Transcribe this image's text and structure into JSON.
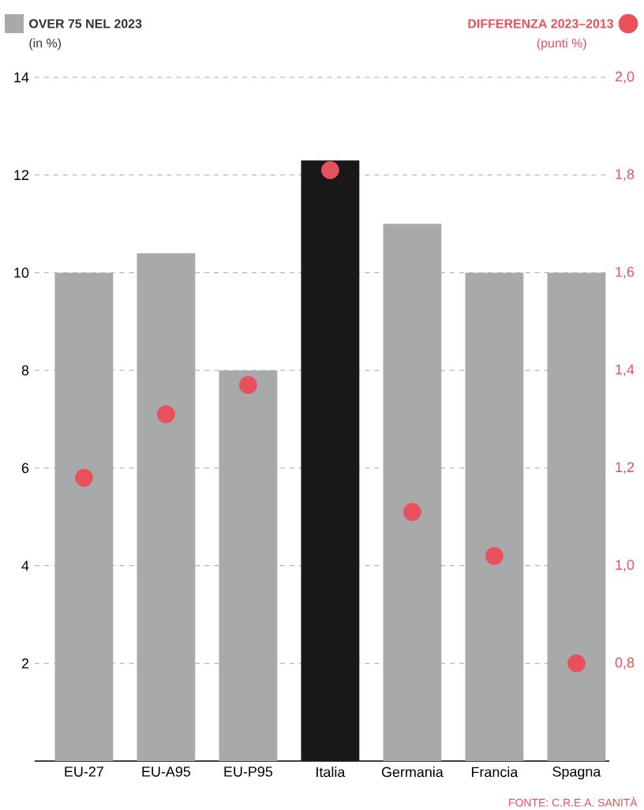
{
  "chart_data": {
    "type": "bar",
    "categories": [
      "EU-27",
      "EU-A95",
      "EU-P95",
      "Italia",
      "Germania",
      "Francia",
      "Spagna"
    ],
    "series": [
      {
        "name": "OVER 75 NEL 2023",
        "color": "#a7a9ab",
        "colors": [
          "#a7a9ab",
          "#a7a9ab",
          "#a7a9ab",
          "#1a1718",
          "#a7a9ab",
          "#a7a9ab",
          "#a7a9ab"
        ],
        "values": [
          10.0,
          10.4,
          8.0,
          12.3,
          11.0,
          10.0,
          10.0
        ]
      },
      {
        "name": "DIFFERENZA 2023–2013",
        "type": "scatter",
        "axis": "y2",
        "color": "#e8505b",
        "marker": "circle",
        "values": [
          1.18,
          1.31,
          1.37,
          1.81,
          1.11,
          1.02,
          0.8
        ]
      }
    ],
    "ylabel": "(in %)",
    "y2label": "(punti %)",
    "ylim": [
      0,
      14
    ],
    "yticks": [
      2,
      4,
      6,
      8,
      10,
      12,
      14
    ],
    "y2lim": [
      0.6,
      2.0
    ],
    "y2ticks": [
      {
        "value": 0.8,
        "label": "0,8"
      },
      {
        "value": 1.0,
        "label": "1,0"
      },
      {
        "value": 1.2,
        "label": "1,2"
      },
      {
        "value": 1.4,
        "label": "1,4"
      },
      {
        "value": 1.6,
        "label": "1,6"
      },
      {
        "value": 1.8,
        "label": "1,8"
      },
      {
        "value": 2.0,
        "label": "2,0"
      }
    ],
    "grid": "y",
    "legend": "top",
    "annotations": [
      "FONTE: C.R.E.A. SANITÀ"
    ]
  }
}
